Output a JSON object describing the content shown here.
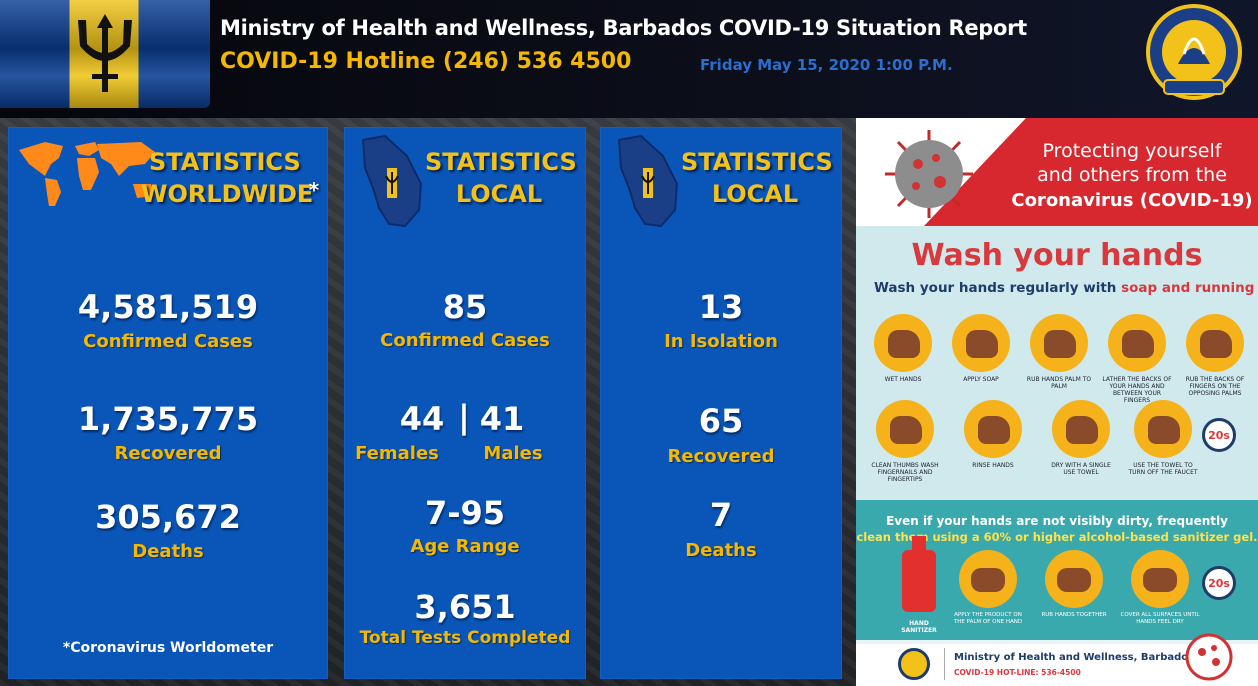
{
  "header": {
    "title": "Ministry of Health and Wellness, Barbados COVID-19 Situation Report",
    "hotline": "COVID-19 Hotline (246) 536 4500",
    "date": "Friday May 15, 2020 1:00 P.M.",
    "seal_text_top": "MINISTRY OF HEALTH AND WELLNESS",
    "seal_text_bottom": "BARBADOS"
  },
  "colors": {
    "panel_blue": "#0a56b8",
    "gold": "#f5b800",
    "poster_red": "#d7282f"
  },
  "worldwide": {
    "heading_line1": "STATISTICS",
    "heading_line2": "WORLDWIDE",
    "asterisk": "*",
    "icon": "world-map-icon",
    "confirmed_value": "4,581,519",
    "confirmed_label": "Confirmed Cases",
    "recovered_value": "1,735,775",
    "recovered_label": "Recovered",
    "deaths_value": "305,672",
    "deaths_label": "Deaths",
    "footnote": "*Coronavirus Worldometer"
  },
  "local1": {
    "heading_line1": "STATISTICS",
    "heading_line2": "LOCAL",
    "icon": "barbados-map-icon",
    "confirmed_value": "85",
    "confirmed_label": "Confirmed Cases",
    "females_value": "44",
    "separator": "|",
    "males_value": "41",
    "females_label": "Females",
    "males_label": "Males",
    "age_value": "7-95",
    "age_label": "Age Range",
    "tests_value": "3,651",
    "tests_label": "Total Tests Completed"
  },
  "local2": {
    "heading_line1": "STATISTICS",
    "heading_line2": "LOCAL",
    "icon": "barbados-map-icon",
    "isolation_value": "13",
    "isolation_label": "In Isolation",
    "recovered_value": "65",
    "recovered_label": "Recovered",
    "deaths_value": "7",
    "deaths_label": "Deaths"
  },
  "poster": {
    "line1": "Protecting yourself",
    "line2": "and others from the",
    "line3": "Coronavirus (COVID-19)",
    "wash_title": "Wash your hands",
    "wash_sub_a": "Wash your hands regularly with ",
    "wash_sub_b": "soap and running water.",
    "steps": [
      "WET HANDS",
      "APPLY SOAP",
      "RUB HANDS PALM TO PALM",
      "LATHER THE BACKS OF YOUR HANDS AND BETWEEN YOUR FINGERS",
      "RUB THE BACKS OF FINGERS ON THE OPPOSING PALMS",
      "CLEAN THUMBS WASH FINGERNAILS AND FINGERTIPS",
      "RINSE HANDS",
      "DRY WITH A SINGLE USE TOWEL",
      "USE THE TOWEL TO TURN OFF THE FAUCET"
    ],
    "timer_label": "20s",
    "sanitizer_line1": "Even if your hands are not visibly dirty, frequently",
    "sanitizer_line2": "clean them using a 60% or higher alcohol-based sanitizer gel.",
    "bottle_label": "HAND SANITIZER",
    "sanitizer_steps": [
      "APPLY THE PRODUCT ON THE PALM OF ONE HAND",
      "RUB HANDS TOGETHER",
      "COVER ALL SURFACES UNTIL HANDS FEEL DRY"
    ],
    "footer_org": "Ministry of Health and Wellness, Barbados",
    "footer_hotline": "COVID-19 HOT-LINE: 536-4500"
  }
}
